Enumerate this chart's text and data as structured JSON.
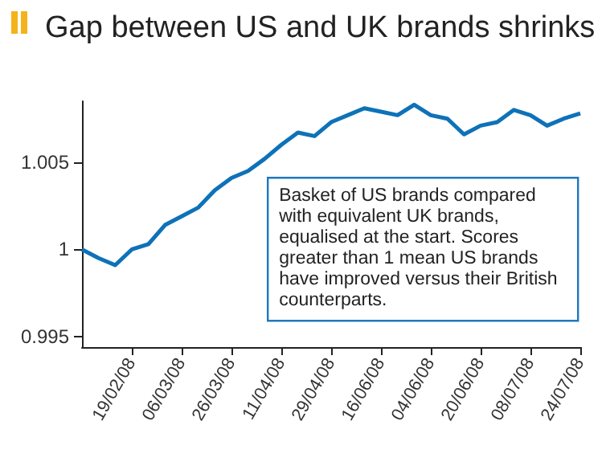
{
  "chart_data": {
    "type": "line",
    "title": "Gap between US and UK brands shrinks",
    "categories": [
      null,
      null,
      null,
      "19/02/08",
      null,
      null,
      "06/03/08",
      null,
      null,
      "26/03/08",
      null,
      null,
      "11/04/08",
      null,
      null,
      "29/04/08",
      null,
      null,
      "16/06/08",
      null,
      null,
      "04/06/08",
      null,
      null,
      "20/06/08",
      null,
      null,
      "08/07/08",
      null,
      null,
      "24/07/08"
    ],
    "series": [
      {
        "color": "#0e72b8",
        "values": [
          1.0,
          0.9995,
          0.9991,
          1.0,
          1.0003,
          1.0014,
          1.0019,
          1.0024,
          1.0034,
          1.0041,
          1.0045,
          1.0052,
          1.006,
          1.0067,
          1.0065,
          1.0073,
          1.0077,
          1.0081,
          1.0079,
          1.0077,
          1.0083,
          1.0077,
          1.0075,
          1.0066,
          1.0071,
          1.0073,
          1.008,
          1.0077,
          1.0071,
          1.0075,
          1.0078
        ]
      }
    ],
    "ylim": [
      0.9944,
      1.0085
    ],
    "yticks": [
      0.995,
      1,
      1.005
    ],
    "grid": false,
    "marker": "none",
    "line_style": "solid",
    "annotations": [
      "Basket of US brands compared with equivalent UK brands, equalised at the start. Scores greater than 1 mean US brands have improved versus their British counterparts."
    ]
  }
}
